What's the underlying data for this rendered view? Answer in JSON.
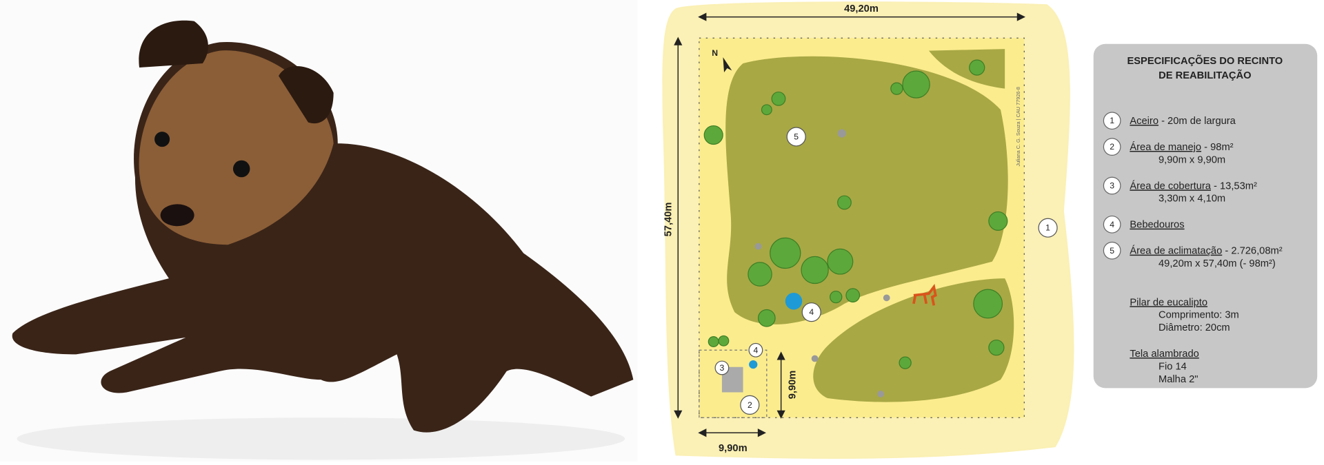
{
  "diagram": {
    "dimensions": {
      "top": "49,20m",
      "left": "57,40m",
      "inner_height": "9,90m",
      "inner_width": "9,90m"
    },
    "north": "N",
    "markers": [
      "1",
      "2",
      "3",
      "4",
      "4",
      "5"
    ],
    "credit": "Juliana C. G. Souza | CAU 77926-8"
  },
  "specs": {
    "title_lines": [
      "ESPECIFICAÇÕES DO RECINTO",
      "DE REABILITAÇÃO"
    ],
    "items": [
      {
        "number": "1",
        "name": "Aceiro",
        "detail": " - 20m de largura"
      },
      {
        "number": "2",
        "name": "Área de manejo",
        "detail": " - 98m²",
        "lines": [
          "9,90m x 9,90m"
        ]
      },
      {
        "number": "3",
        "name": "Área de cobertura",
        "detail": " - 13,53m²",
        "lines": [
          "3,30m x 4,10m"
        ]
      },
      {
        "number": "4",
        "name": "Bebedouros"
      },
      {
        "number": "5",
        "name": "Área de aclimatação",
        "detail": " - 2.726,08m²",
        "lines": [
          "49,20m x 57,40m (- 98m²)"
        ]
      }
    ],
    "notes": [
      {
        "title": "Pilar de eucalipto",
        "lines": [
          "Comprimento: 3m",
          "Diâmetro: 20cm"
        ]
      },
      {
        "title": "Tela alambrado",
        "lines": [
          "Fio 14",
          "Malha 2\""
        ]
      }
    ]
  }
}
